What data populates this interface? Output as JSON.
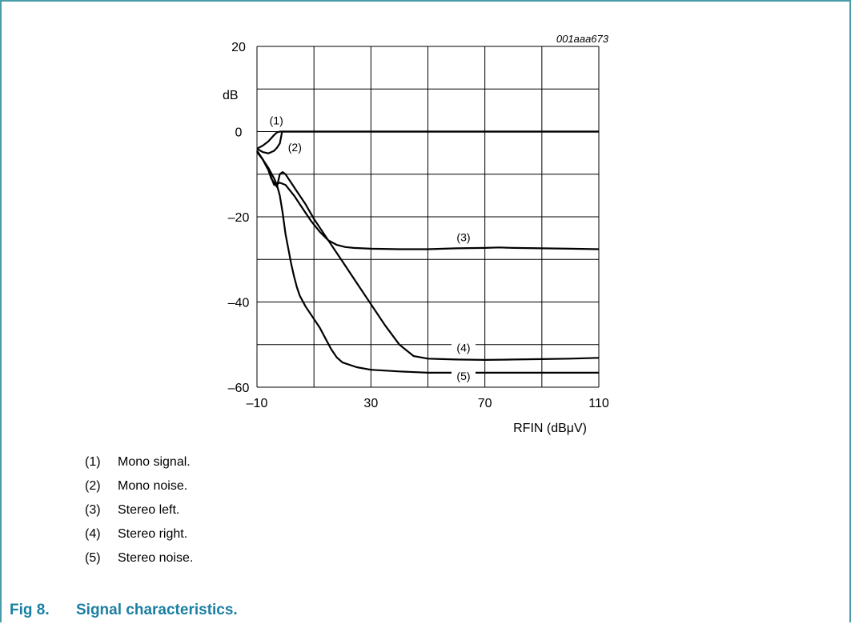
{
  "figure": {
    "id_label": "001aaa673",
    "caption_number": "Fig 8.",
    "caption_text": "Signal characteristics.",
    "frame_color": "#4a9da8",
    "caption_color": "#1a7fa3"
  },
  "legend": [
    {
      "num": "(1)",
      "text": "Mono signal."
    },
    {
      "num": "(2)",
      "text": "Mono noise."
    },
    {
      "num": "(3)",
      "text": "Stereo left."
    },
    {
      "num": "(4)",
      "text": "Stereo right."
    },
    {
      "num": "(5)",
      "text": "Stereo noise."
    }
  ],
  "chart_data": {
    "type": "line",
    "title": "",
    "xlabel": "RFIN (dBμV)",
    "ylabel": "dB",
    "xlim": [
      -10,
      110
    ],
    "ylim": [
      -60,
      20
    ],
    "x_ticks": [
      -10,
      30,
      70,
      110
    ],
    "x_tick_labels": [
      "–10",
      "30",
      "70",
      "110"
    ],
    "y_ticks": [
      20,
      0,
      -20,
      -40,
      -60
    ],
    "y_tick_labels": [
      "20",
      "0",
      "–20",
      "–40",
      "–60"
    ],
    "grid": true,
    "series": [
      {
        "name": "(1)",
        "x": [
          -10,
          -8,
          -6,
          -4,
          -3,
          -2,
          0,
          10,
          50,
          110
        ],
        "y": [
          -4,
          -3.3,
          -2.3,
          -0.8,
          -0.2,
          0,
          0,
          0,
          0,
          0
        ]
      },
      {
        "name": "(2)",
        "x": [
          -10,
          -8,
          -6,
          -4,
          -3,
          -2,
          -1.5,
          -1.2,
          0,
          10,
          50,
          110
        ],
        "y": [
          -4,
          -4.8,
          -5.1,
          -4.5,
          -3.8,
          -2.8,
          -1.2,
          0,
          0,
          0,
          0,
          0
        ]
      },
      {
        "name": "(3)",
        "x": [
          -10,
          -8,
          -6,
          -4,
          -2,
          0,
          3,
          6,
          9,
          12,
          15,
          18,
          21,
          24,
          27,
          30,
          40,
          50,
          60,
          70,
          75,
          80,
          90,
          100,
          110
        ],
        "y": [
          -4.5,
          -6.5,
          -9,
          -12.5,
          -12,
          -12.5,
          -15,
          -18,
          -21,
          -23.5,
          -25.5,
          -26.6,
          -27.1,
          -27.3,
          -27.4,
          -27.5,
          -27.6,
          -27.6,
          -27.4,
          -27.3,
          -27.2,
          -27.3,
          -27.4,
          -27.5,
          -27.6
        ]
      },
      {
        "name": "(4)",
        "x": [
          -10,
          -8,
          -6,
          -5,
          -3,
          -2,
          -1,
          0,
          2,
          4,
          7,
          10,
          15,
          20,
          25,
          30,
          35,
          40,
          45,
          50,
          55,
          60,
          70,
          80,
          90,
          100,
          110
        ],
        "y": [
          -4.5,
          -6.5,
          -9,
          -11,
          -13,
          -10,
          -9.5,
          -10,
          -12,
          -14,
          -17,
          -20.5,
          -25.5,
          -30.5,
          -35.5,
          -40.5,
          -45.5,
          -50,
          -52.7,
          -53.3,
          -53.4,
          -53.5,
          -53.6,
          -53.5,
          -53.4,
          -53.3,
          -53.1
        ]
      },
      {
        "name": "(5)",
        "x": [
          -10,
          -8,
          -6,
          -4,
          -3,
          -2,
          -1,
          0,
          2,
          3,
          4,
          5,
          7,
          10,
          12,
          14,
          16,
          18,
          20,
          25,
          30,
          40,
          50,
          60,
          70,
          80,
          90,
          100,
          110
        ],
        "y": [
          -4.8,
          -6.5,
          -8.5,
          -11,
          -12.5,
          -15,
          -19,
          -24,
          -31,
          -34,
          -36.5,
          -38.5,
          -41,
          -44,
          -46,
          -48.5,
          -51,
          -53,
          -54.2,
          -55.3,
          -55.9,
          -56.3,
          -56.6,
          -56.6,
          -56.6,
          -56.6,
          -56.6,
          -56.6,
          -56.6
        ]
      }
    ],
    "annotations": [
      {
        "text": "(1)",
        "x": -3.2,
        "y": 2.6
      },
      {
        "text": "(2)",
        "x": 3.3,
        "y": -3.7
      },
      {
        "text": "(3)",
        "x": 62.5,
        "y": -24.8
      },
      {
        "text": "(4)",
        "x": 62.5,
        "y": -50.7,
        "leader": true
      },
      {
        "text": "(5)",
        "x": 62.5,
        "y": -57.4,
        "leader": true
      }
    ]
  }
}
